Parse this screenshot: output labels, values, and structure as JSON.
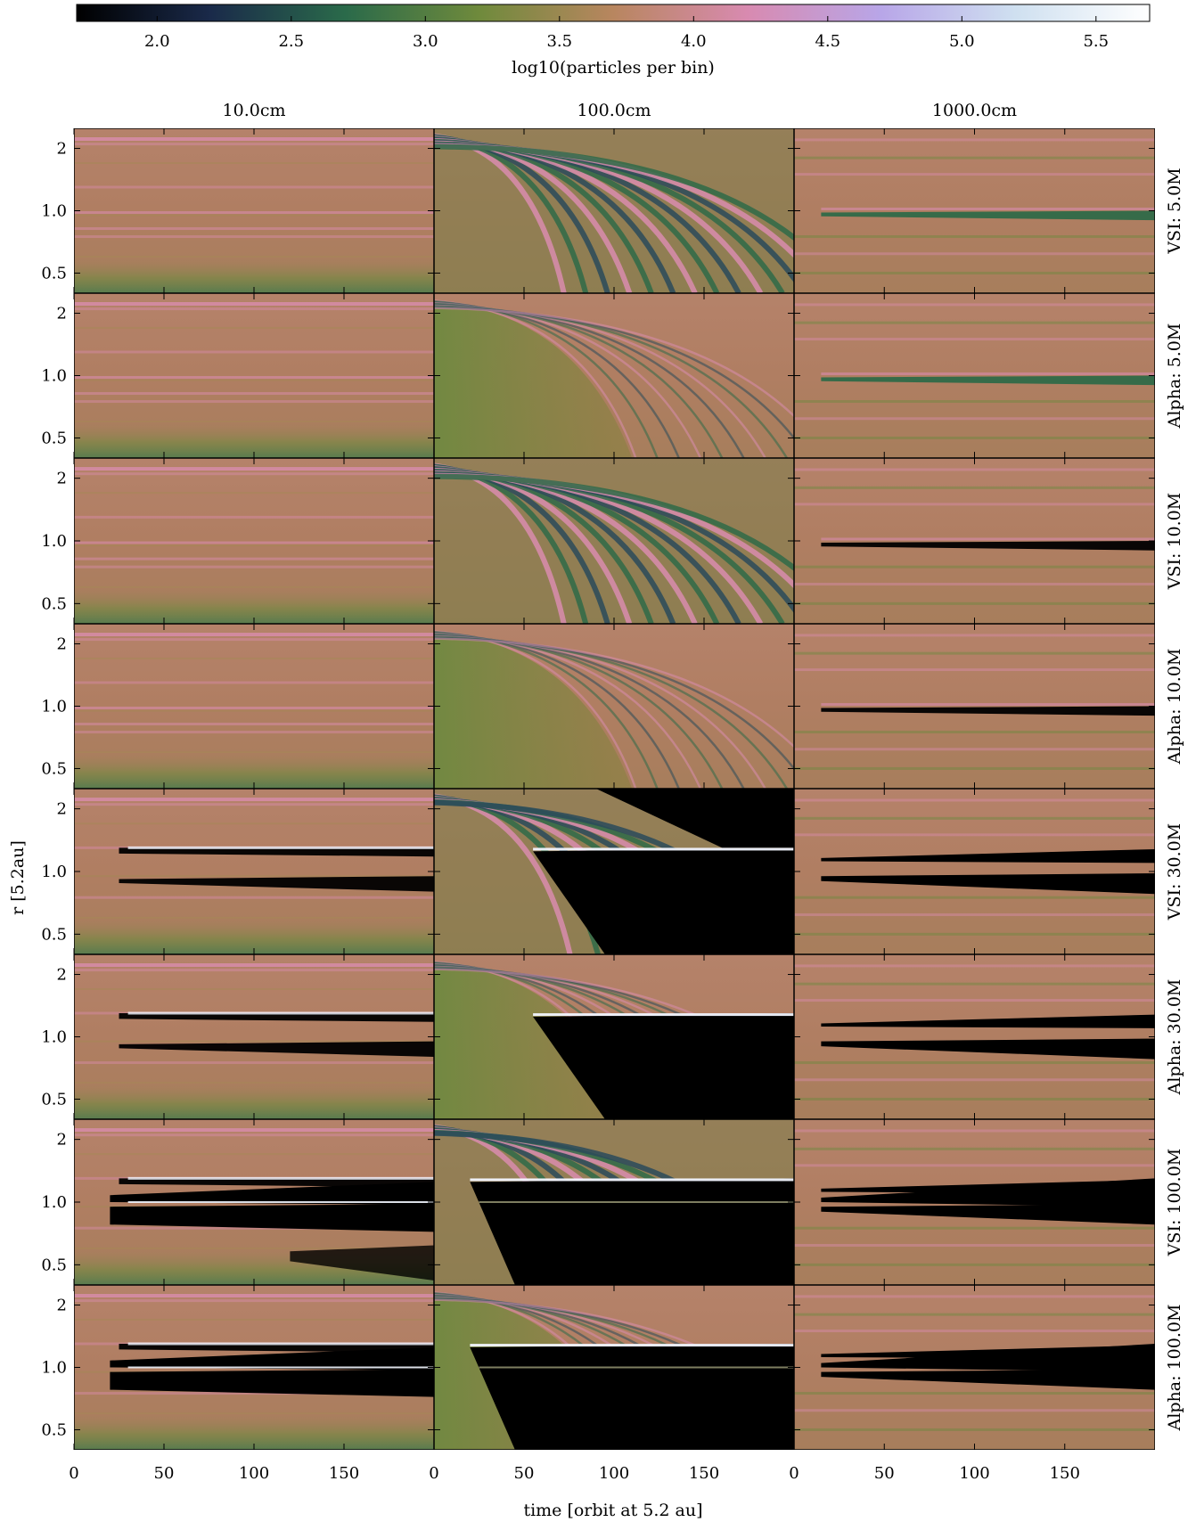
{
  "chart_data": {
    "type": "heatmap",
    "layout": "8 rows x 3 columns grid of heatmap panels",
    "colorbar": {
      "label": "log10(particles per bin)",
      "range": [
        1.7,
        5.7
      ],
      "ticks": [
        "2.0",
        "2.5",
        "3.0",
        "3.5",
        "4.0",
        "4.5",
        "5.0",
        "5.5"
      ],
      "tick_values": [
        2.0,
        2.5,
        3.0,
        3.5,
        4.0,
        4.5,
        5.0,
        5.5
      ],
      "colors": [
        "#000000",
        "#1a2a4a",
        "#2a6a4a",
        "#6f8a3c",
        "#b8865f",
        "#d88ab0",
        "#b8a6e8",
        "#cfe0f0",
        "#ffffff"
      ],
      "placement": "top"
    },
    "column_titles": [
      "10.0cm",
      "100.0cm",
      "1000.0cm"
    ],
    "row_labels": [
      "VSI: 5.0M",
      "Alpha: 5.0M",
      "VSI: 10.0M",
      "Alpha: 10.0M",
      "VSI: 30.0M",
      "Alpha: 30.0M",
      "VSI: 100.0M",
      "Alpha: 100.0M"
    ],
    "xlabel": "time [orbit at 5.2 au]",
    "ylabel": "r [5.2au]",
    "x_ticks": [
      "0",
      "50",
      "100",
      "150"
    ],
    "x_tick_values": [
      0,
      50,
      100,
      150
    ],
    "xlim": [
      0,
      200
    ],
    "y_ticks": [
      "0.5",
      "1.0",
      "2"
    ],
    "y_tick_values": [
      0.5,
      1.0,
      2.0
    ],
    "ylim": [
      0.4,
      2.5
    ],
    "y_scale": "log",
    "colors": {
      "background_field": "#b07e62",
      "ring_pink": "#d98cae",
      "band_green": "#6b8a3e",
      "deep_green": "#2f6a48",
      "gap_black": "#000000",
      "edge_white": "#f2f6ff"
    }
  }
}
